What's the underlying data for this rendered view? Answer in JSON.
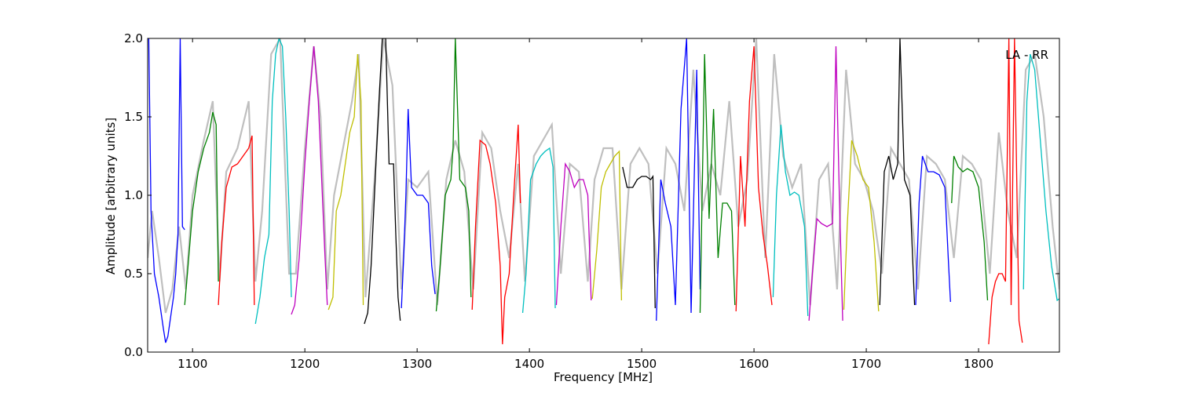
{
  "chart_data": {
    "type": "line",
    "title": "",
    "annotation": "LA - RR",
    "xlabel": "Frequency [MHz]",
    "ylabel": "Amplitude [arbitrary units]",
    "xlim": [
      1060,
      1872
    ],
    "ylim": [
      0.0,
      2.0
    ],
    "grid": false,
    "xticks": [
      1100,
      1200,
      1300,
      1400,
      1500,
      1600,
      1700,
      1800
    ],
    "xtick_labels": [
      "1100",
      "1200",
      "1300",
      "1400",
      "1500",
      "1600",
      "1700",
      "1800"
    ],
    "yticks": [
      0.0,
      0.5,
      1.0,
      1.5,
      2.0
    ],
    "ytick_labels": [
      "0.0",
      "0.5",
      "1.0",
      "1.5",
      "2.0"
    ],
    "colors": {
      "background_trace": "#bfbfbf",
      "blue": "#0000ff",
      "green": "#008000",
      "red": "#ff0000",
      "cyan": "#00bfbf",
      "magenta": "#bf00bf",
      "yellow": "#bfbf00",
      "black": "#000000"
    },
    "series": [
      {
        "color": "blue",
        "x": [
          1061,
          1063,
          1066,
          1070,
          1074,
          1076,
          1078,
          1080,
          1083,
          1085,
          1087,
          1089,
          1091,
          1093
        ],
        "y": [
          2.0,
          0.9,
          0.5,
          0.35,
          0.15,
          0.06,
          0.1,
          0.2,
          0.35,
          0.5,
          0.75,
          2.0,
          0.8,
          0.78
        ]
      },
      {
        "color": "green",
        "x": [
          1093,
          1096,
          1100,
          1105,
          1110,
          1115,
          1118,
          1121,
          1123
        ],
        "y": [
          0.3,
          0.55,
          0.9,
          1.15,
          1.3,
          1.4,
          1.53,
          1.45,
          0.45
        ]
      },
      {
        "color": "red",
        "x": [
          1123,
          1126,
          1130,
          1135,
          1140,
          1145,
          1150,
          1153,
          1155
        ],
        "y": [
          0.3,
          0.7,
          1.05,
          1.18,
          1.2,
          1.25,
          1.3,
          1.38,
          0.3
        ]
      },
      {
        "color": "cyan",
        "x": [
          1156,
          1160,
          1164,
          1168,
          1171,
          1174,
          1177,
          1180,
          1183,
          1186,
          1188
        ],
        "y": [
          0.18,
          0.35,
          0.6,
          0.75,
          1.6,
          1.9,
          2.0,
          1.95,
          1.5,
          0.9,
          0.35
        ]
      },
      {
        "color": "magenta",
        "x": [
          1188,
          1191,
          1195,
          1200,
          1204,
          1208,
          1212,
          1215,
          1218,
          1220
        ],
        "y": [
          0.24,
          0.3,
          0.6,
          1.2,
          1.6,
          1.95,
          1.6,
          1.1,
          0.6,
          0.3
        ]
      },
      {
        "color": "yellow",
        "x": [
          1221,
          1225,
          1228,
          1232,
          1236,
          1240,
          1244,
          1247,
          1250,
          1252
        ],
        "y": [
          0.27,
          0.35,
          0.9,
          1.0,
          1.2,
          1.4,
          1.5,
          1.9,
          1.6,
          0.3
        ]
      },
      {
        "color": "black",
        "x": [
          1253,
          1256,
          1259,
          1262,
          1266,
          1269,
          1272,
          1275,
          1279,
          1281,
          1283,
          1285
        ],
        "y": [
          0.18,
          0.25,
          0.55,
          1.0,
          1.6,
          2.0,
          2.0,
          1.2,
          1.2,
          0.75,
          0.35,
          0.2
        ]
      },
      {
        "color": "blue",
        "x": [
          1286,
          1288,
          1290,
          1292,
          1295,
          1300,
          1305,
          1310,
          1313,
          1316
        ],
        "y": [
          0.28,
          0.6,
          1.0,
          1.55,
          1.05,
          1.0,
          1.0,
          0.95,
          0.55,
          0.37
        ]
      },
      {
        "color": "green",
        "x": [
          1317,
          1320,
          1325,
          1330,
          1332,
          1334,
          1338,
          1343,
          1346,
          1348
        ],
        "y": [
          0.26,
          0.5,
          1.0,
          1.1,
          1.3,
          2.0,
          1.1,
          1.05,
          0.9,
          0.35
        ]
      },
      {
        "color": "red",
        "x": [
          1349,
          1352,
          1356,
          1361,
          1365,
          1370,
          1374,
          1376,
          1378,
          1382,
          1386,
          1390,
          1392
        ],
        "y": [
          0.27,
          0.8,
          1.35,
          1.32,
          1.2,
          0.95,
          0.55,
          0.05,
          0.35,
          0.5,
          1.0,
          1.45,
          0.95
        ]
      },
      {
        "color": "cyan",
        "x": [
          1394,
          1397,
          1401,
          1406,
          1410,
          1414,
          1418,
          1421,
          1423
        ],
        "y": [
          0.25,
          0.5,
          1.1,
          1.2,
          1.25,
          1.28,
          1.3,
          1.18,
          0.28
        ]
      },
      {
        "color": "magenta",
        "x": [
          1424,
          1428,
          1432,
          1436,
          1440,
          1444,
          1448,
          1452,
          1455
        ],
        "y": [
          0.3,
          0.8,
          1.2,
          1.15,
          1.05,
          1.1,
          1.1,
          1.0,
          0.33
        ]
      },
      {
        "color": "yellow",
        "x": [
          1456,
          1460,
          1464,
          1468,
          1472,
          1476,
          1480,
          1482
        ],
        "y": [
          0.34,
          0.65,
          1.05,
          1.15,
          1.2,
          1.25,
          1.28,
          0.33
        ]
      },
      {
        "color": "black",
        "x": [
          1483,
          1487,
          1492,
          1496,
          1500,
          1504,
          1508,
          1510,
          1512
        ],
        "y": [
          1.18,
          1.05,
          1.05,
          1.1,
          1.12,
          1.12,
          1.1,
          1.12,
          0.28
        ]
      },
      {
        "color": "blue",
        "x": [
          1513,
          1517,
          1521,
          1526,
          1530,
          1535,
          1540,
          1544,
          1549,
          1552
        ],
        "y": [
          0.2,
          1.1,
          0.95,
          0.8,
          0.3,
          1.55,
          2.0,
          0.25,
          1.8,
          0.4
        ]
      },
      {
        "color": "green",
        "x": [
          1552,
          1556,
          1560,
          1564,
          1568,
          1572,
          1576,
          1580,
          1583
        ],
        "y": [
          0.25,
          1.9,
          0.85,
          1.55,
          0.6,
          0.95,
          0.95,
          0.9,
          0.3
        ]
      },
      {
        "color": "red",
        "x": [
          1584,
          1588,
          1592,
          1596,
          1600,
          1604,
          1608,
          1612,
          1616
        ],
        "y": [
          0.26,
          1.25,
          0.8,
          1.6,
          1.95,
          1.05,
          0.75,
          0.55,
          0.3
        ]
      },
      {
        "color": "cyan",
        "x": [
          1617,
          1620,
          1624,
          1628,
          1632,
          1636,
          1640,
          1645,
          1648
        ],
        "y": [
          0.35,
          1.0,
          1.45,
          1.15,
          1.0,
          1.02,
          1.0,
          0.8,
          0.23
        ]
      },
      {
        "color": "magenta",
        "x": [
          1649,
          1652,
          1656,
          1660,
          1665,
          1670,
          1673,
          1676,
          1679
        ],
        "y": [
          0.2,
          0.5,
          0.85,
          0.82,
          0.8,
          0.82,
          1.95,
          1.0,
          0.2
        ]
      },
      {
        "color": "yellow",
        "x": [
          1680,
          1683,
          1687,
          1692,
          1697,
          1702,
          1707,
          1711
        ],
        "y": [
          0.27,
          0.8,
          1.35,
          1.25,
          1.1,
          1.05,
          0.7,
          0.26
        ]
      },
      {
        "color": "black",
        "x": [
          1712,
          1716,
          1720,
          1724,
          1728,
          1730,
          1734,
          1739,
          1743
        ],
        "y": [
          0.3,
          1.15,
          1.25,
          1.1,
          1.2,
          2.0,
          1.1,
          1.0,
          0.3
        ]
      },
      {
        "color": "blue",
        "x": [
          1744,
          1747,
          1750,
          1755,
          1760,
          1765,
          1770,
          1773,
          1775
        ],
        "y": [
          0.3,
          0.95,
          1.25,
          1.15,
          1.15,
          1.13,
          1.05,
          0.6,
          0.32
        ]
      },
      {
        "color": "green",
        "x": [
          1776,
          1778,
          1782,
          1786,
          1790,
          1795,
          1800,
          1805,
          1808
        ],
        "y": [
          0.95,
          1.25,
          1.18,
          1.15,
          1.17,
          1.15,
          1.05,
          0.7,
          0.33
        ]
      },
      {
        "color": "red",
        "x": [
          1809,
          1812,
          1815,
          1818,
          1821,
          1824,
          1827,
          1829,
          1832,
          1836,
          1839
        ],
        "y": [
          0.05,
          0.35,
          0.45,
          0.5,
          0.5,
          0.45,
          2.0,
          0.3,
          2.0,
          0.2,
          0.06
        ]
      },
      {
        "color": "cyan",
        "x": [
          1840,
          1843,
          1846,
          1850,
          1855,
          1860,
          1865,
          1870,
          1872
        ],
        "y": [
          0.4,
          1.6,
          1.9,
          1.8,
          1.35,
          0.9,
          0.55,
          0.33,
          0.34
        ]
      }
    ],
    "background_series": {
      "x": [
        1060,
        1064,
        1070,
        1076,
        1082,
        1088,
        1094,
        1100,
        1110,
        1118,
        1124,
        1130,
        1140,
        1150,
        1156,
        1162,
        1170,
        1178,
        1186,
        1192,
        1200,
        1208,
        1214,
        1220,
        1226,
        1234,
        1242,
        1248,
        1254,
        1262,
        1270,
        1278,
        1286,
        1292,
        1300,
        1310,
        1318,
        1326,
        1334,
        1342,
        1350,
        1358,
        1366,
        1374,
        1382,
        1390,
        1396,
        1404,
        1412,
        1420,
        1428,
        1436,
        1444,
        1452,
        1458,
        1466,
        1474,
        1482,
        1490,
        1498,
        1506,
        1514,
        1522,
        1530,
        1538,
        1546,
        1554,
        1562,
        1570,
        1578,
        1586,
        1594,
        1602,
        1610,
        1618,
        1626,
        1634,
        1642,
        1650,
        1658,
        1666,
        1674,
        1682,
        1690,
        1698,
        1706,
        1714,
        1722,
        1730,
        1738,
        1746,
        1754,
        1762,
        1770,
        1778,
        1786,
        1794,
        1802,
        1810,
        1818,
        1826,
        1834,
        1842,
        1850,
        1858,
        1866,
        1872
      ],
      "y": [
        0.6,
        0.9,
        0.6,
        0.25,
        0.4,
        0.8,
        0.4,
        1.0,
        1.35,
        1.6,
        0.45,
        1.15,
        1.3,
        1.6,
        0.45,
        0.9,
        1.9,
        2.0,
        0.5,
        0.5,
        1.3,
        1.95,
        1.5,
        0.4,
        1.0,
        1.3,
        1.6,
        1.9,
        0.35,
        1.1,
        2.0,
        1.7,
        0.4,
        1.1,
        1.05,
        1.15,
        0.3,
        1.1,
        1.35,
        1.15,
        0.4,
        1.4,
        1.3,
        0.9,
        0.6,
        1.2,
        0.45,
        1.25,
        1.35,
        1.45,
        0.5,
        1.2,
        1.15,
        0.45,
        1.1,
        1.3,
        1.3,
        0.4,
        1.2,
        1.3,
        1.2,
        0.5,
        1.3,
        1.2,
        0.9,
        1.8,
        0.9,
        1.2,
        1.0,
        1.6,
        0.8,
        1.1,
        2.0,
        0.6,
        1.9,
        1.25,
        1.05,
        1.2,
        0.3,
        1.1,
        1.2,
        0.4,
        1.8,
        1.2,
        1.1,
        0.9,
        0.5,
        1.3,
        1.2,
        1.1,
        0.4,
        1.25,
        1.2,
        1.1,
        0.6,
        1.25,
        1.2,
        1.1,
        0.5,
        1.4,
        0.9,
        0.6,
        1.8,
        1.9,
        1.5,
        0.8,
        0.4
      ]
    }
  }
}
